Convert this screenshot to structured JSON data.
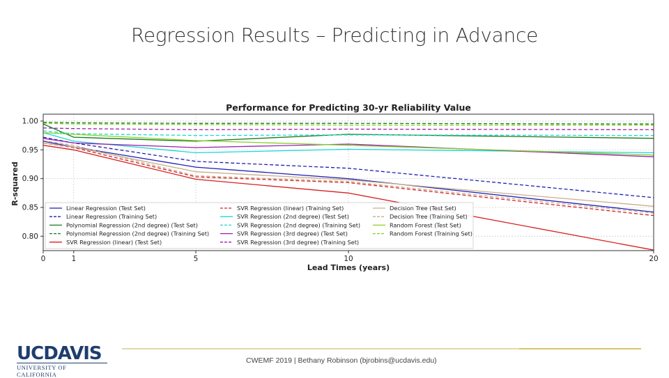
{
  "slide": {
    "title": "Regression Results – Predicting in Advance",
    "footer": "CWEMF 2019  |  Bethany Robinson (bjrobins@ucdavis.edu)",
    "logo_main": "UCDAVIS",
    "logo_sub": "UNIVERSITY OF CALIFORNIA"
  },
  "chart_data": {
    "type": "line",
    "title": "Performance for Predicting 30-yr Reliability Value",
    "xlabel": "Lead Times (years)",
    "ylabel": "R-squared",
    "xlim": [
      0,
      20
    ],
    "ylim": [
      0.775,
      1.012
    ],
    "xticks": [
      0,
      1,
      5,
      10,
      20
    ],
    "yticks": [
      0.8,
      0.85,
      0.9,
      0.95,
      1.0
    ],
    "ytick_labels": [
      "0.80",
      "0.85",
      "0.90",
      "0.95",
      "1.00"
    ],
    "grid": true,
    "legend_position": "lower-left",
    "x": [
      0,
      1,
      5,
      10,
      20
    ],
    "series": [
      {
        "name": "Linear Regression (Test Set)",
        "color": "#1f1fb4",
        "dash": "solid",
        "values": [
          0.965,
          0.955,
          0.92,
          0.9,
          0.842
        ]
      },
      {
        "name": "Linear Regression (Training Set)",
        "color": "#1f1fb4",
        "dash": "dashed",
        "values": [
          0.972,
          0.962,
          0.93,
          0.918,
          0.867
        ]
      },
      {
        "name": "Polynomial Regression (2nd degree) (Test Set)",
        "color": "#1a7a1a",
        "dash": "solid",
        "values": [
          0.995,
          0.972,
          0.965,
          0.977,
          0.97
        ]
      },
      {
        "name": "Polynomial Regression (2nd degree) (Training Set)",
        "color": "#1a7a1a",
        "dash": "dashed",
        "values": [
          0.998,
          0.997,
          0.996,
          0.996,
          0.995
        ]
      },
      {
        "name": "SVR Regression (linear) (Test Set)",
        "color": "#d62020",
        "dash": "solid",
        "values": [
          0.958,
          0.95,
          0.899,
          0.875,
          0.776
        ]
      },
      {
        "name": "SVR Regression (linear) (Training Set)",
        "color": "#d62020",
        "dash": "dashed",
        "values": [
          0.962,
          0.954,
          0.903,
          0.893,
          0.836
        ]
      },
      {
        "name": "SVR Regression (2nd degree) (Test Set)",
        "color": "#17d8d8",
        "dash": "solid",
        "values": [
          0.98,
          0.965,
          0.945,
          0.951,
          0.945
        ]
      },
      {
        "name": "SVR Regression (2nd degree) (Training Set)",
        "color": "#17d8d8",
        "dash": "dashed",
        "values": [
          0.983,
          0.978,
          0.975,
          0.976,
          0.975
        ]
      },
      {
        "name": "SVR Regression (3rd degree) (Test Set)",
        "color": "#9c1fb0",
        "dash": "solid",
        "values": [
          0.97,
          0.962,
          0.954,
          0.96,
          0.938
        ]
      },
      {
        "name": "SVR Regression (3rd degree) (Training Set)",
        "color": "#9c1fb0",
        "dash": "dashed",
        "values": [
          0.988,
          0.987,
          0.985,
          0.986,
          0.985
        ]
      },
      {
        "name": "Decision Tree (Test Set)",
        "color": "#c9ad8c",
        "dash": "solid",
        "values": [
          0.962,
          0.955,
          0.912,
          0.898,
          0.852
        ]
      },
      {
        "name": "Decision Tree (Training Set)",
        "color": "#c9ad8c",
        "dash": "dashed",
        "values": [
          0.966,
          0.958,
          0.905,
          0.895,
          0.84
        ]
      },
      {
        "name": "Random Forest (Test Set)",
        "color": "#84d126",
        "dash": "solid",
        "values": [
          0.98,
          0.977,
          0.966,
          0.958,
          0.941
        ]
      },
      {
        "name": "Random Forest (Training Set)",
        "color": "#84d126",
        "dash": "dashed",
        "values": [
          0.996,
          0.995,
          0.994,
          0.993,
          0.993
        ]
      }
    ]
  }
}
